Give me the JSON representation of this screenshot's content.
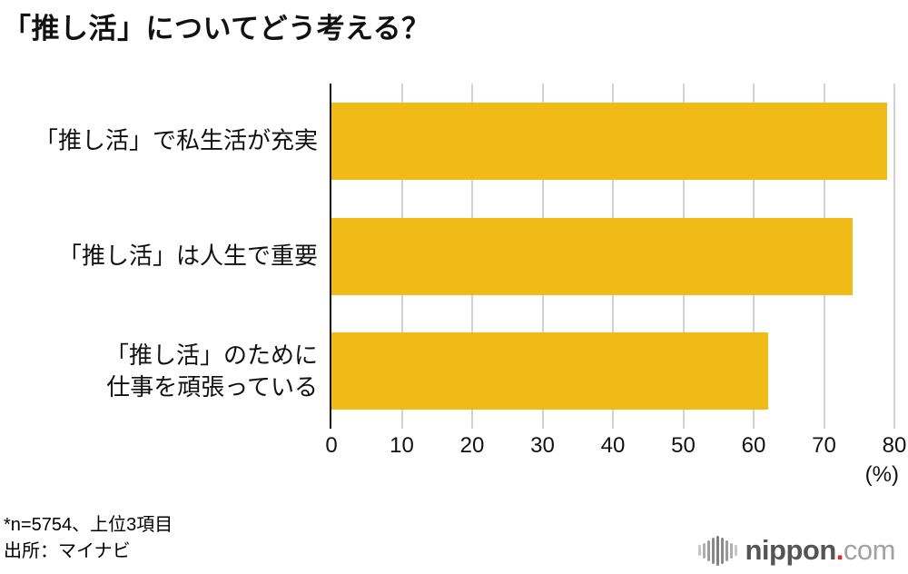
{
  "chart_data": {
    "type": "bar",
    "orientation": "horizontal",
    "title": "「推し活」についてどう考える？",
    "xlabel": "",
    "ylabel": "",
    "x_unit": "(%)",
    "xlim": [
      0,
      80
    ],
    "x_ticks": [
      0,
      10,
      20,
      30,
      40,
      50,
      60,
      70,
      80
    ],
    "grid": true,
    "legend": "none",
    "rows": [
      {
        "label": "「推し活」で私生活が充実",
        "label_lines": [
          "「推し活」で私生活が充実"
        ],
        "value": 79
      },
      {
        "label": "「推し活」は人生で重要",
        "label_lines": [
          "「推し活」は人生で重要"
        ],
        "value": 74
      },
      {
        "label": "「推し活」のために仕事を頑張っている",
        "label_lines": [
          "「推し活」のために",
          "仕事を頑張っている"
        ],
        "value": 62
      }
    ]
  },
  "footnote": {
    "note": "*n=5754、上位3項目",
    "source": "出所：マイナビ"
  },
  "logo": {
    "name": "nippon",
    "dot": ".",
    "tld": "com",
    "name_color": "#555555",
    "dot_color": "#e8261c",
    "tld_color": "#a2a2a2",
    "waveform": {
      "heights": [
        12,
        17,
        23,
        29,
        33,
        29,
        23,
        17,
        12
      ],
      "colors": [
        "#c6c6c6",
        "#aeaeae",
        "#9b9b9b",
        "#8a8a8a",
        "#7f7f7f",
        "#8a8a8a",
        "#9b9b9b",
        "#aeaeae",
        "#c6c6c6"
      ]
    }
  },
  "colors": {
    "background": "#ffffff",
    "bar": "#f0bb16",
    "gridline": "#d2d2d2",
    "axis": "#111111",
    "text": "#111111"
  }
}
